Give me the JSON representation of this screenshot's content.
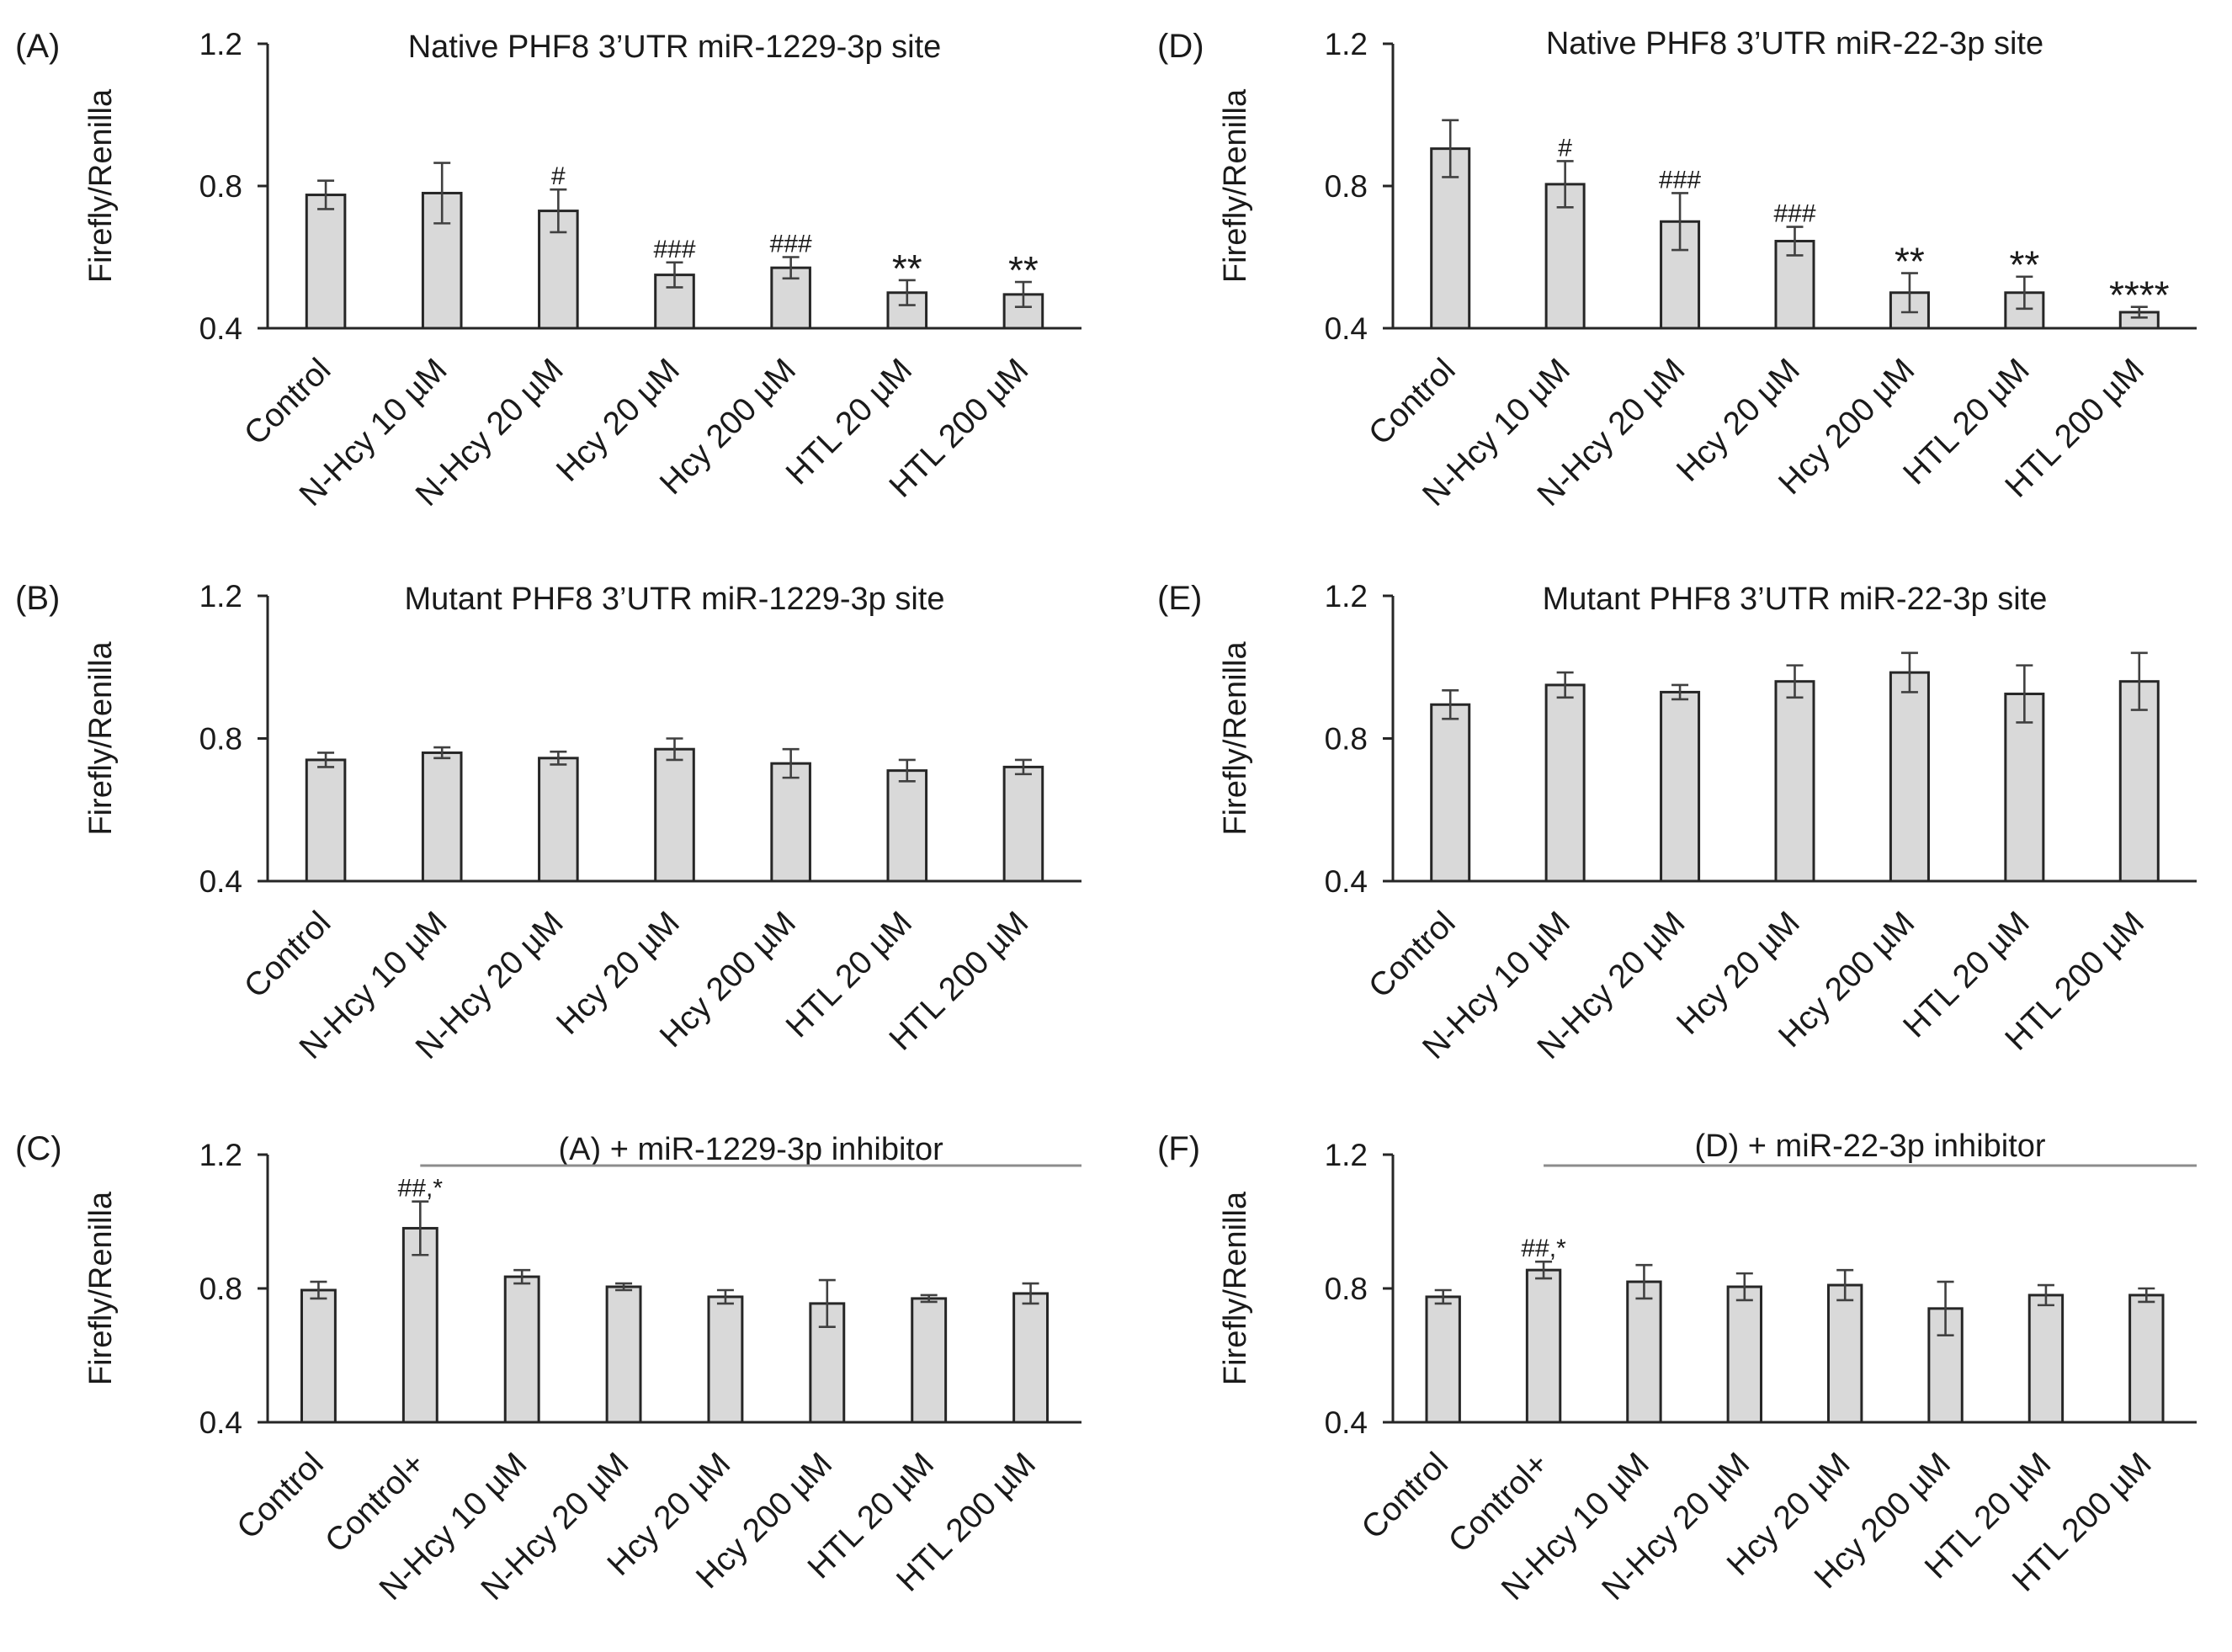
{
  "chart_data": [
    {
      "panel": "(A)",
      "type": "bar",
      "title": "Native PHF8 3’UTR miR-1229-3p site",
      "ylabel": "Firefly/Renilla",
      "ylim": [
        0.4,
        1.2
      ],
      "yticks": [
        "0.4",
        "0.8",
        "1.2"
      ],
      "categories": [
        "Control",
        "N-Hcy 10 µM",
        "N-Hcy 20 µM",
        "Hcy 20 µM",
        "Hcy 200 µM",
        "HTL 20 µM",
        "HTL 200 µM"
      ],
      "values": [
        0.775,
        0.78,
        0.73,
        0.55,
        0.57,
        0.5,
        0.495
      ],
      "errors": [
        0.04,
        0.085,
        0.06,
        0.035,
        0.03,
        0.035,
        0.035
      ],
      "annotations": [
        "",
        "",
        "#",
        "###",
        "###",
        "**",
        "**"
      ]
    },
    {
      "panel": "(B)",
      "type": "bar",
      "title": "Mutant PHF8 3’UTR miR-1229-3p site",
      "ylabel": "Firefly/Renilla",
      "ylim": [
        0.4,
        1.2
      ],
      "yticks": [
        "0.4",
        "0.8",
        "1.2"
      ],
      "categories": [
        "Control",
        "N-Hcy 10 µM",
        "N-Hcy 20 µM",
        "Hcy 20 µM",
        "Hcy 200 µM",
        "HTL 20 µM",
        "HTL 200 µM"
      ],
      "values": [
        0.74,
        0.76,
        0.745,
        0.77,
        0.73,
        0.71,
        0.72
      ],
      "errors": [
        0.02,
        0.015,
        0.018,
        0.03,
        0.04,
        0.03,
        0.02
      ],
      "annotations": [
        "",
        "",
        "",
        "",
        "",
        "",
        ""
      ]
    },
    {
      "panel": "(C)",
      "type": "bar",
      "title": "(A) + miR-1229-3p inhibitor",
      "bracket": true,
      "ylabel": "Firefly/Renilla",
      "ylim": [
        0.4,
        1.2
      ],
      "yticks": [
        "0.4",
        "0.8",
        "1.2"
      ],
      "categories": [
        "Control",
        "Control+",
        "N-Hcy 10 µM",
        "N-Hcy 20 µM",
        "Hcy 20 µM",
        "Hcy 200 µM",
        "HTL 20 µM",
        "HTL 200 µM"
      ],
      "values": [
        0.795,
        0.98,
        0.835,
        0.805,
        0.775,
        0.755,
        0.77,
        0.785
      ],
      "errors": [
        0.025,
        0.08,
        0.02,
        0.01,
        0.02,
        0.07,
        0.01,
        0.03
      ],
      "annotations": [
        "",
        "##,*",
        "",
        "",
        "",
        "",
        "",
        ""
      ]
    },
    {
      "panel": "(D)",
      "type": "bar",
      "title": "Native PHF8 3’UTR miR-22-3p site",
      "ylabel": "Firefly/Renilla",
      "ylim": [
        0.4,
        1.2
      ],
      "yticks": [
        "0.4",
        "0.8",
        "1.2"
      ],
      "categories": [
        "Control",
        "N-Hcy 10 µM",
        "N-Hcy 20 µM",
        "Hcy 20 µM",
        "Hcy 200 µM",
        "HTL 20 µM",
        "HTL 200 µM"
      ],
      "values": [
        0.905,
        0.805,
        0.7,
        0.645,
        0.5,
        0.5,
        0.445
      ],
      "errors": [
        0.08,
        0.065,
        0.08,
        0.04,
        0.055,
        0.045,
        0.015
      ],
      "annotations": [
        "",
        "#",
        "###",
        "###",
        "**",
        "**",
        "****"
      ]
    },
    {
      "panel": "(E)",
      "type": "bar",
      "title": "Mutant PHF8 3’UTR miR-22-3p site",
      "ylabel": "Firefly/Renilla",
      "ylim": [
        0.4,
        1.2
      ],
      "yticks": [
        "0.4",
        "0.8",
        "1.2"
      ],
      "categories": [
        "Control",
        "N-Hcy 10 µM",
        "N-Hcy 20 µM",
        "Hcy 20 µM",
        "Hcy 200 µM",
        "HTL 20 µM",
        "HTL 200 µM"
      ],
      "values": [
        0.895,
        0.95,
        0.93,
        0.96,
        0.985,
        0.925,
        0.96
      ],
      "errors": [
        0.04,
        0.035,
        0.02,
        0.045,
        0.055,
        0.08,
        0.08
      ],
      "annotations": [
        "",
        "",
        "",
        "",
        "",
        "",
        ""
      ]
    },
    {
      "panel": "(F)",
      "type": "bar",
      "title": "(D) + miR-22-3p inhibitor",
      "bracket": true,
      "ylabel": "Firefly/Renilla",
      "ylim": [
        0.4,
        1.2
      ],
      "yticks": [
        "0.4",
        "0.8",
        "1.2"
      ],
      "categories": [
        "Control",
        "Control+",
        "N-Hcy 10 µM",
        "N-Hcy 20 µM",
        "Hcy 20 µM",
        "Hcy 200 µM",
        "HTL 20 µM",
        "HTL 200 µM"
      ],
      "values": [
        0.775,
        0.855,
        0.82,
        0.805,
        0.81,
        0.74,
        0.78,
        0.78
      ],
      "errors": [
        0.02,
        0.025,
        0.05,
        0.04,
        0.045,
        0.08,
        0.03,
        0.02
      ],
      "annotations": [
        "",
        "##,*",
        "",
        "",
        "",
        "",
        "",
        ""
      ]
    }
  ]
}
